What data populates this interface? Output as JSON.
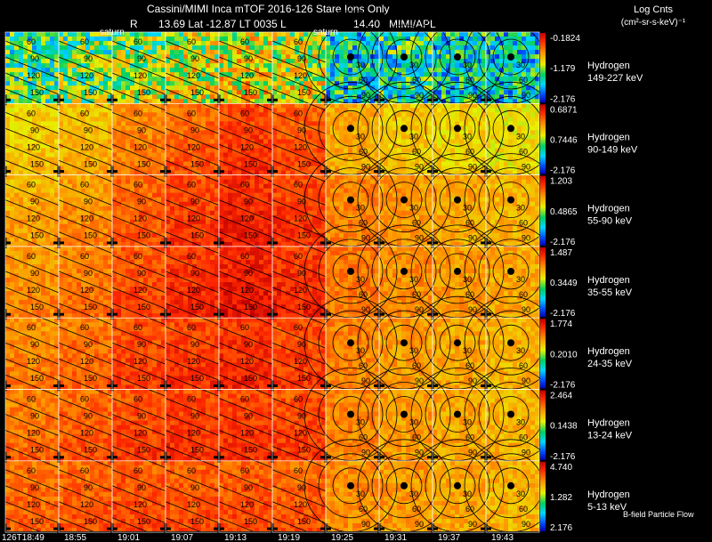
{
  "chart_data": {
    "type": "heatmap",
    "title": "Cassini/MIMI Inca mTOF  2016-126   Stare   Ions Only",
    "subtitle": {
      "prefix": "R",
      "values": "13.69 Lat -12.87 LT 0035 L",
      "l_value": "14.40",
      "source": "MIMI/APL"
    },
    "colorbar_title": [
      "Log Cnts",
      "(cm²-sr-s-keV)⁻¹"
    ],
    "time_labels": [
      "126T18:49",
      "18:55",
      "19:01",
      "19:07",
      "19:13",
      "19:19",
      "19:25",
      "19:31",
      "19:37",
      "19:43"
    ],
    "marker_labels": [
      {
        "text": "saturn",
        "column": 2
      },
      {
        "text": "saturn",
        "column": 6
      }
    ],
    "contour_labels_tilted": [
      "60",
      "90",
      "120",
      "150"
    ],
    "contour_labels_polar": [
      "30",
      "60",
      "90"
    ],
    "footer": "B-field Particle Flow",
    "rows": [
      {
        "species": "Hydrogen",
        "energy": "149-227 keV",
        "cb_max": "-0.1824",
        "cb_mid": "-1.179",
        "cb_min": "-2.176",
        "intensity": [
          0.4,
          0.45,
          0.5,
          0.55,
          0.6,
          0.55,
          0.3,
          0.35,
          0.3,
          0.3
        ]
      },
      {
        "species": "Hydrogen",
        "energy": "90-149 keV",
        "cb_max": "0.6871",
        "cb_mid": "0.7446",
        "cb_min": "-2.176",
        "intensity": [
          0.62,
          0.66,
          0.74,
          0.8,
          0.86,
          0.82,
          0.68,
          0.62,
          0.6,
          0.58
        ]
      },
      {
        "species": "Hydrogen",
        "energy": "55-90 keV",
        "cb_max": "1.203",
        "cb_mid": "0.4865",
        "cb_min": "-2.176",
        "intensity": [
          0.68,
          0.72,
          0.8,
          0.85,
          0.9,
          0.86,
          0.74,
          0.7,
          0.68,
          0.66
        ]
      },
      {
        "species": "Hydrogen",
        "energy": "35-55 keV",
        "cb_max": "1.487",
        "cb_mid": "0.3449",
        "cb_min": "-2.176",
        "intensity": [
          0.72,
          0.76,
          0.83,
          0.88,
          0.92,
          0.88,
          0.76,
          0.72,
          0.7,
          0.68
        ]
      },
      {
        "species": "Hydrogen",
        "energy": "24-35 keV",
        "cb_max": "1.774",
        "cb_mid": "0.2010",
        "cb_min": "-2.176",
        "intensity": [
          0.74,
          0.78,
          0.84,
          0.86,
          0.88,
          0.84,
          0.74,
          0.7,
          0.68,
          0.66
        ]
      },
      {
        "species": "Hydrogen",
        "energy": "13-24 keV",
        "cb_max": "2.464",
        "cb_mid": "0.1438",
        "cb_min": "-2.176",
        "intensity": [
          0.76,
          0.8,
          0.84,
          0.86,
          0.86,
          0.84,
          0.74,
          0.7,
          0.68,
          0.66
        ]
      },
      {
        "species": "Hydrogen",
        "energy": "5-13 keV",
        "cb_max": "4.740",
        "cb_mid": "1.282",
        "cb_min": "2.176",
        "intensity": [
          0.78,
          0.8,
          0.82,
          0.82,
          0.82,
          0.8,
          0.72,
          0.7,
          0.68,
          0.66
        ]
      }
    ]
  }
}
